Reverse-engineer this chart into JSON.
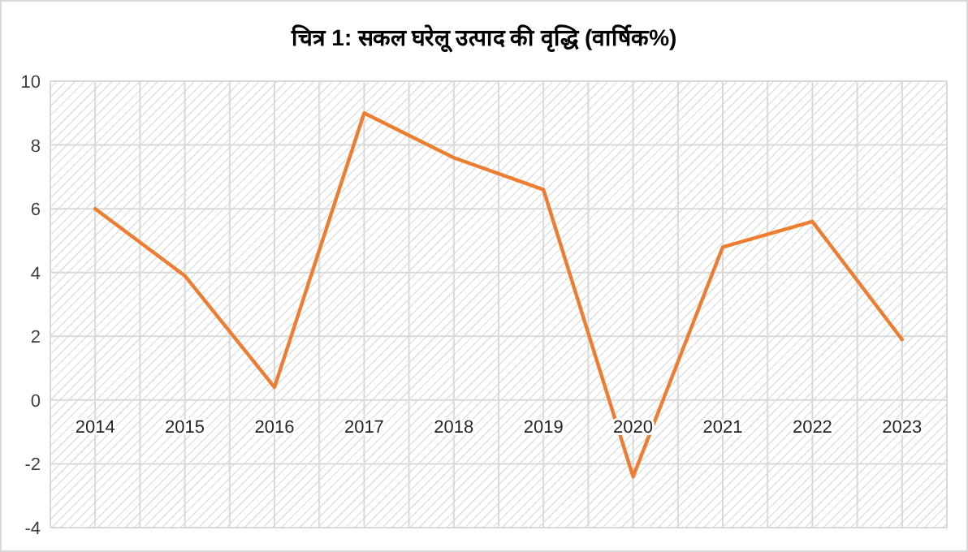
{
  "chart_data": {
    "type": "line",
    "title": "चित्र 1: सकल घरेलू उत्पाद की वृद्धि (वार्षिक%)",
    "categories": [
      "2014",
      "2015",
      "2016",
      "2017",
      "2018",
      "2019",
      "2020",
      "2021",
      "2022",
      "2023"
    ],
    "series": [
      {
        "color": "#ed7d31",
        "values": [
          6.0,
          3.9,
          0.4,
          9.0,
          7.6,
          6.6,
          -2.4,
          4.8,
          5.6,
          1.9
        ]
      }
    ],
    "ylim": [
      -4,
      10
    ],
    "yticks": [
      -4,
      -2,
      0,
      2,
      4,
      6,
      8,
      10
    ],
    "grid": true,
    "marker": "none",
    "line_style": "solid"
  }
}
